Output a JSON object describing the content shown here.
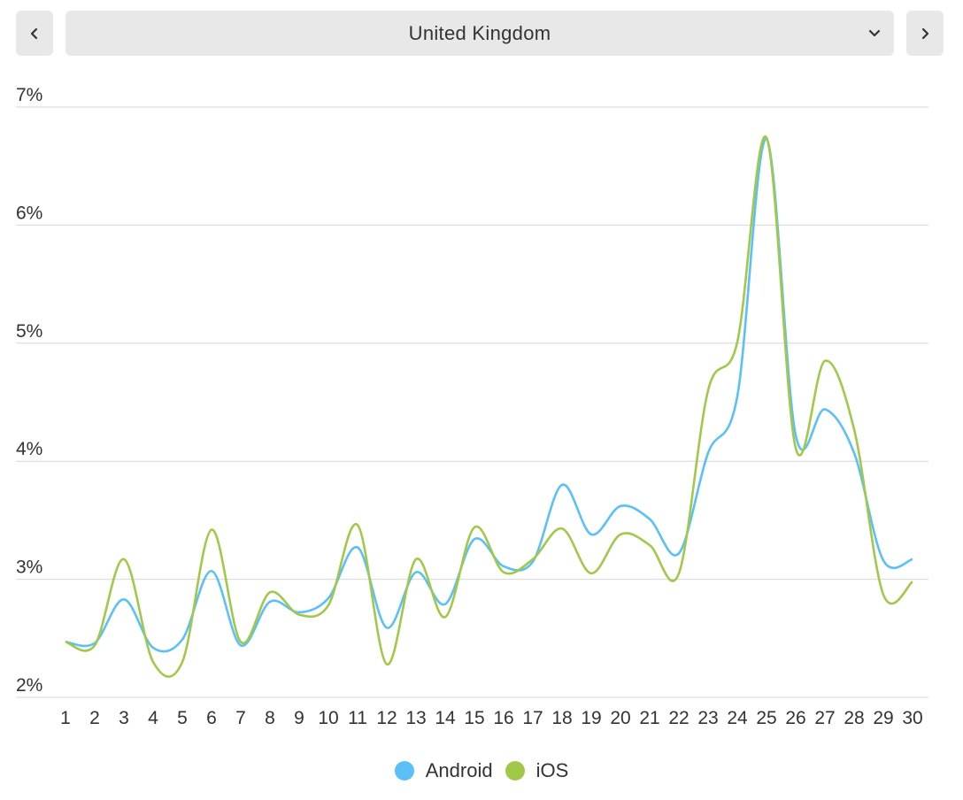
{
  "country_select": {
    "value": "United Kingdom"
  },
  "icons": {
    "prev": "chevron-left-icon",
    "next": "chevron-right-icon",
    "dropdown": "chevron-down-icon"
  },
  "chart_data": {
    "type": "line",
    "x": [
      1,
      2,
      3,
      4,
      5,
      6,
      7,
      8,
      9,
      10,
      11,
      12,
      13,
      14,
      15,
      16,
      17,
      18,
      19,
      20,
      21,
      22,
      23,
      24,
      25,
      26,
      27,
      28,
      29,
      30
    ],
    "ylim": [
      2,
      7
    ],
    "y_ticks": [
      "2%",
      "3%",
      "4%",
      "5%",
      "6%",
      "7%"
    ],
    "grid": true,
    "legend_position": "bottom",
    "series": [
      {
        "name": "Android",
        "color": "#5bc0f8",
        "values": [
          2.47,
          2.46,
          2.83,
          2.42,
          2.49,
          3.07,
          2.44,
          2.81,
          2.72,
          2.84,
          3.27,
          2.59,
          3.06,
          2.79,
          3.34,
          3.11,
          3.15,
          3.8,
          3.38,
          3.62,
          3.51,
          3.22,
          4.07,
          4.55,
          6.73,
          4.22,
          4.44,
          4.07,
          3.16,
          3.17
        ]
      },
      {
        "name": "iOS",
        "color": "#a2c84a",
        "values": [
          2.47,
          2.44,
          3.17,
          2.3,
          2.3,
          3.42,
          2.47,
          2.89,
          2.7,
          2.78,
          3.46,
          2.28,
          3.17,
          2.68,
          3.44,
          3.06,
          3.17,
          3.43,
          3.05,
          3.38,
          3.29,
          3.05,
          4.6,
          5.01,
          6.74,
          4.11,
          4.85,
          4.27,
          2.87,
          2.98
        ]
      }
    ]
  }
}
